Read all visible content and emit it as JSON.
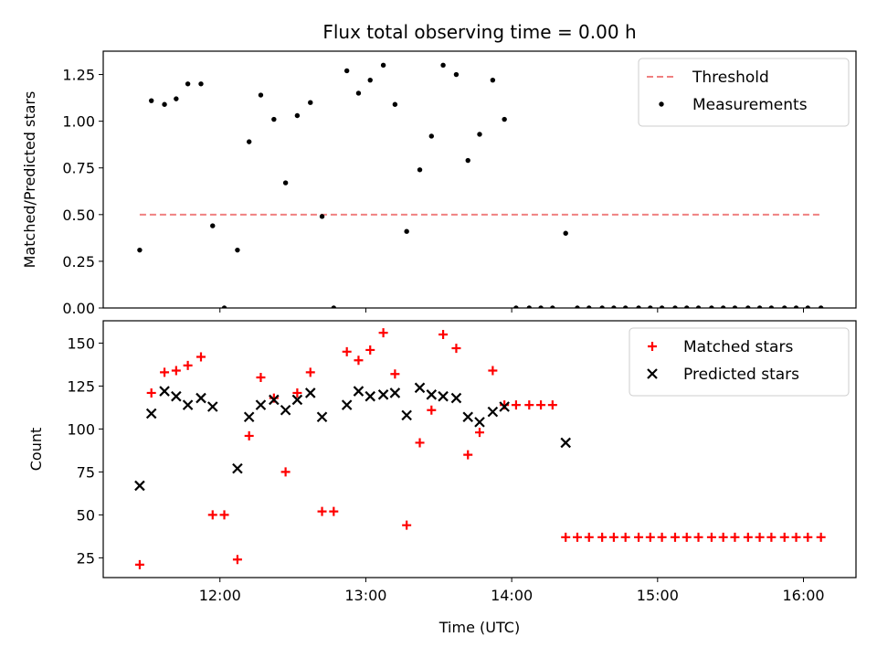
{
  "chart_data": {
    "title": "Flux total observing time = 0.00 h",
    "xlabel": "Time (UTC)",
    "x_tick_labels": [
      "12:00",
      "13:00",
      "14:00",
      "15:00",
      "16:00"
    ],
    "x_ticks_hours": [
      12,
      13,
      14,
      15,
      16
    ],
    "xlim_hours": [
      11.2,
      16.36
    ],
    "panels": [
      {
        "type": "scatter",
        "ylabel": "Matched/Predicted stars",
        "ylim": [
          0,
          1.375
        ],
        "y_ticks": [
          "0.00",
          "0.25",
          "0.50",
          "0.75",
          "1.00",
          "1.25"
        ],
        "legend": "upper right",
        "threshold": {
          "name": "Threshold",
          "value": 0.5,
          "x_range": [
            11.45,
            16.12
          ],
          "color": "#f08080"
        },
        "series": [
          {
            "name": "Measurements",
            "marker": "dot",
            "color": "#000000",
            "x": [
              11.45,
              11.53,
              11.62,
              11.7,
              11.78,
              11.87,
              11.95,
              12.03,
              12.12,
              12.2,
              12.28,
              12.37,
              12.45,
              12.53,
              12.62,
              12.7,
              12.78,
              12.87,
              12.95,
              13.03,
              13.12,
              13.2,
              13.28,
              13.37,
              13.45,
              13.53,
              13.62,
              13.7,
              13.78,
              13.87,
              13.95,
              14.03,
              14.12,
              14.2,
              14.28,
              14.37,
              14.45,
              14.53,
              14.62,
              14.7,
              14.78,
              14.87,
              14.95,
              15.03,
              15.12,
              15.2,
              15.28,
              15.37,
              15.45,
              15.53,
              15.62,
              15.7,
              15.78,
              15.87,
              15.95,
              16.03,
              16.12
            ],
            "y": [
              0.31,
              1.11,
              1.09,
              1.12,
              1.2,
              1.2,
              0.44,
              0.0,
              0.31,
              0.89,
              1.14,
              1.01,
              0.67,
              1.03,
              1.1,
              0.49,
              0.0,
              1.27,
              1.15,
              1.22,
              1.3,
              1.09,
              0.41,
              0.74,
              0.92,
              1.3,
              1.25,
              0.79,
              0.93,
              1.22,
              1.01,
              0.0,
              0.0,
              0.0,
              0.0,
              0.4,
              0.0,
              0.0,
              0.0,
              0.0,
              0.0,
              0.0,
              0.0,
              0.0,
              0.0,
              0.0,
              0.0,
              0.0,
              0.0,
              0.0,
              0.0,
              0.0,
              0.0,
              0.0,
              0.0,
              0.0,
              0.0
            ]
          }
        ]
      },
      {
        "type": "scatter",
        "ylabel": "Count",
        "ylim": [
          13.5,
          163
        ],
        "y_ticks": [
          "25",
          "50",
          "75",
          "100",
          "125",
          "150"
        ],
        "legend": "upper right",
        "series": [
          {
            "name": "Matched stars",
            "marker": "plus",
            "color": "#ff0000",
            "x": [
              11.45,
              11.53,
              11.62,
              11.7,
              11.78,
              11.87,
              11.95,
              12.03,
              12.12,
              12.2,
              12.28,
              12.37,
              12.45,
              12.53,
              12.62,
              12.7,
              12.78,
              12.87,
              12.95,
              13.03,
              13.12,
              13.2,
              13.28,
              13.37,
              13.45,
              13.53,
              13.62,
              13.7,
              13.78,
              13.87,
              13.95,
              14.03,
              14.12,
              14.2,
              14.28,
              14.37,
              14.45,
              14.53,
              14.62,
              14.7,
              14.78,
              14.87,
              14.95,
              15.03,
              15.12,
              15.2,
              15.28,
              15.37,
              15.45,
              15.53,
              15.62,
              15.7,
              15.78,
              15.87,
              15.95,
              16.03,
              16.12
            ],
            "y": [
              21,
              121,
              133,
              134,
              137,
              142,
              50,
              50,
              24,
              96,
              130,
              118,
              75,
              121,
              133,
              52,
              52,
              145,
              140,
              146,
              156,
              132,
              44,
              92,
              111,
              155,
              147,
              85,
              98,
              134,
              114,
              114,
              114,
              114,
              114,
              37,
              37,
              37,
              37,
              37,
              37,
              37,
              37,
              37,
              37,
              37,
              37,
              37,
              37,
              37,
              37,
              37,
              37,
              37,
              37,
              37,
              37
            ]
          },
          {
            "name": "Predicted stars",
            "marker": "x",
            "color": "#000000",
            "x": [
              11.45,
              11.53,
              11.62,
              11.7,
              11.78,
              11.87,
              11.95,
              12.12,
              12.2,
              12.28,
              12.37,
              12.45,
              12.53,
              12.62,
              12.7,
              12.87,
              12.95,
              13.03,
              13.12,
              13.2,
              13.28,
              13.37,
              13.45,
              13.53,
              13.62,
              13.7,
              13.78,
              13.87,
              13.95,
              14.37
            ],
            "y": [
              67,
              109,
              122,
              119,
              114,
              118,
              113,
              77,
              107,
              114,
              117,
              111,
              117,
              121,
              107,
              114,
              122,
              119,
              120,
              121,
              108,
              124,
              120,
              119,
              118,
              107,
              104,
              110,
              113,
              92
            ]
          }
        ]
      }
    ]
  }
}
